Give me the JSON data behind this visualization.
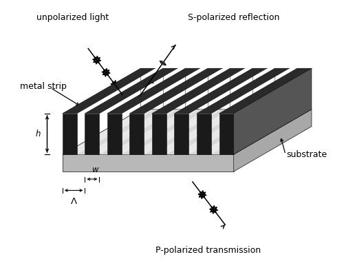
{
  "fig_width": 5.0,
  "fig_height": 3.92,
  "dpi": 100,
  "bg_color": "#ffffff",
  "strip_dark": "#1a1a1a",
  "strip_top": "#2a2a2a",
  "strip_side_right": "#3d3d3d",
  "substrate_top": "#e8e8e8",
  "substrate_front": "#b8b8b8",
  "substrate_right": "#a8a8a8",
  "num_strips": 8,
  "ann_color": "#000000",
  "text_fontsize": 8.5,
  "labels": {
    "unpolarized_light": "unpolarized light",
    "s_polarized": "S-polarized reflection",
    "p_polarized": "P-polarized transmission",
    "metal_strip": "metal strip",
    "substrate": "substrate",
    "h_label": "h",
    "w_label": "w",
    "lambda_label": "Λ"
  }
}
